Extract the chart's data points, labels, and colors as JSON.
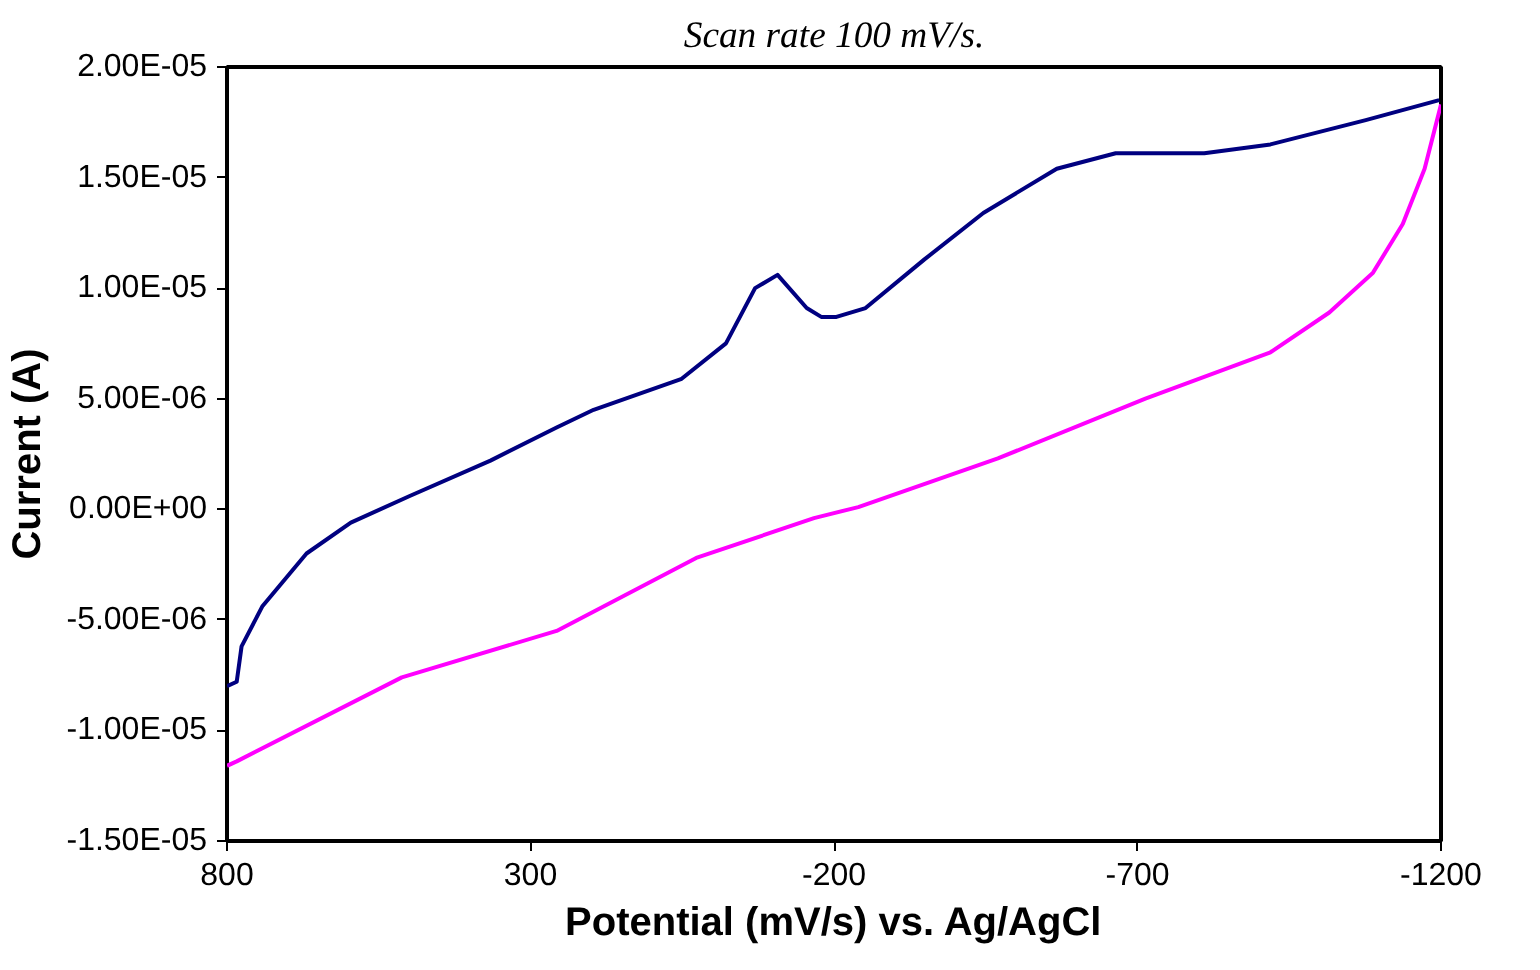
{
  "chart_data": {
    "type": "line",
    "xlabel": "Potential (mV/s) vs. Ag/AgCl",
    "ylabel": "Current (A)",
    "annotations": [
      "Scan rate 100 mV/s."
    ],
    "xlim": [
      800,
      -1200
    ],
    "xticks": [
      800,
      300,
      -200,
      -700,
      -1200
    ],
    "ylim": [
      -1.5e-05,
      2e-05
    ],
    "yticks": [
      {
        "value": 2e-05,
        "label": "2.00E-05"
      },
      {
        "value": 1.5e-05,
        "label": "1.50E-05"
      },
      {
        "value": 1e-05,
        "label": "1.00E-05"
      },
      {
        "value": 5e-06,
        "label": "5.00E-06"
      },
      {
        "value": 0,
        "label": "0.00E+00"
      },
      {
        "value": -5e-06,
        "label": "-5.00E-06"
      },
      {
        "value": -1e-05,
        "label": "-1.00E-05"
      },
      {
        "value": -1.5e-05,
        "label": "-1.50E-05"
      }
    ],
    "grid": false,
    "marker": "none",
    "line_style": "solid",
    "series": [
      {
        "color": "#000080",
        "x": [
          800,
          784,
          776,
          742,
          669,
          596,
          499,
          366,
          257,
          196,
          51,
          -22,
          -70,
          -107,
          -155,
          -179,
          -204,
          -252,
          -349,
          -446,
          -567,
          -664,
          -810,
          -919,
          -1076,
          -1197
        ],
        "values": [
          -8e-06,
          -7.8e-06,
          -6.2e-06,
          -4.4e-06,
          -2e-06,
          -6e-07,
          6e-07,
          2.2e-06,
          3.7e-06,
          4.5e-06,
          5.9e-06,
          7.5e-06,
          1e-05,
          1.06e-05,
          9.1e-06,
          8.7e-06,
          8.7e-06,
          9.1e-06,
          1.13e-05,
          1.34e-05,
          1.54e-05,
          1.61e-05,
          1.61e-05,
          1.65e-05,
          1.76e-05,
          1.85e-05
        ]
      },
      {
        "color": "#ff00ff",
        "x": [
          800,
          784,
          512,
          257,
          27,
          -167,
          -240,
          -470,
          -713,
          -919,
          -1016,
          -1088,
          -1137,
          -1173,
          -1200
        ],
        "values": [
          -1.16e-05,
          -1.14e-05,
          -7.6e-06,
          -5.5e-06,
          -2.2e-06,
          -4e-07,
          1e-07,
          2.3e-06,
          5e-06,
          7.1e-06,
          8.9e-06,
          1.07e-05,
          1.29e-05,
          1.54e-05,
          1.83e-05
        ]
      }
    ]
  }
}
